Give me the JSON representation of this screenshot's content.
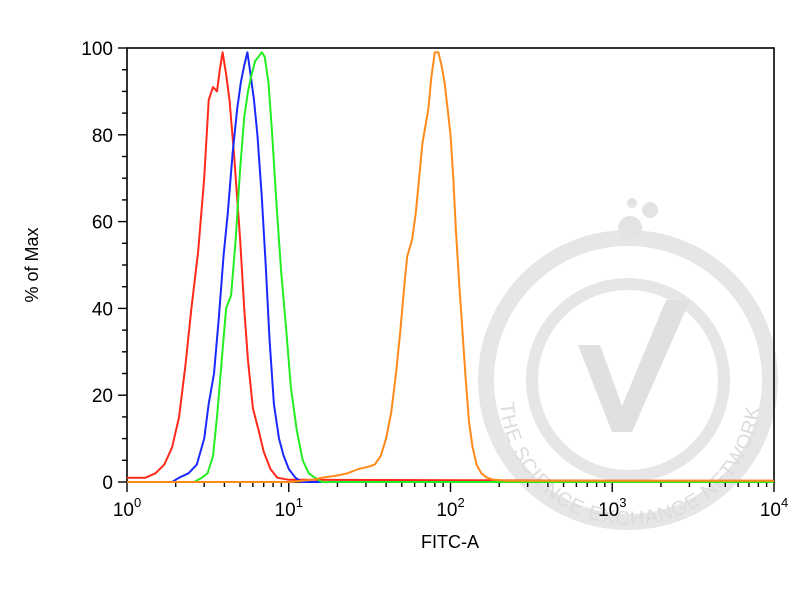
{
  "chart_data": {
    "type": "line",
    "xlabel": "FITC-A",
    "ylabel": "% of Max",
    "x_scale": "log",
    "xlim": [
      1,
      10000
    ],
    "ylim": [
      0,
      100
    ],
    "x_ticks": [
      {
        "base": "10",
        "exp": "0"
      },
      {
        "base": "10",
        "exp": "1"
      },
      {
        "base": "10",
        "exp": "2"
      },
      {
        "base": "10",
        "exp": "3"
      },
      {
        "base": "10",
        "exp": "4"
      }
    ],
    "y_ticks": [
      "0",
      "20",
      "40",
      "60",
      "80",
      "100"
    ],
    "y_tick_values": [
      0,
      20,
      40,
      60,
      80,
      100
    ],
    "grid": false,
    "legend": "none",
    "series": [
      {
        "color": "#ff2a1a",
        "points": [
          [
            1.0,
            1
          ],
          [
            1.3,
            1
          ],
          [
            1.5,
            2
          ],
          [
            1.7,
            4
          ],
          [
            1.9,
            8
          ],
          [
            2.1,
            15
          ],
          [
            2.3,
            27
          ],
          [
            2.5,
            40
          ],
          [
            2.75,
            53
          ],
          [
            3.0,
            70
          ],
          [
            3.2,
            88
          ],
          [
            3.4,
            91
          ],
          [
            3.6,
            90
          ],
          [
            3.75,
            95
          ],
          [
            3.9,
            99
          ],
          [
            4.1,
            94
          ],
          [
            4.3,
            88
          ],
          [
            4.6,
            75
          ],
          [
            5.0,
            56
          ],
          [
            5.3,
            40
          ],
          [
            5.6,
            28
          ],
          [
            6.0,
            17
          ],
          [
            6.5,
            12
          ],
          [
            7.0,
            7
          ],
          [
            7.7,
            3
          ],
          [
            8.5,
            1
          ],
          [
            10,
            0.5
          ],
          [
            1000,
            0.3
          ],
          [
            10000,
            0.3
          ]
        ]
      },
      {
        "color": "#1a2aff",
        "points": [
          [
            1.0,
            0
          ],
          [
            1.9,
            0
          ],
          [
            2.1,
            1
          ],
          [
            2.4,
            2
          ],
          [
            2.7,
            4
          ],
          [
            3.0,
            10
          ],
          [
            3.2,
            18
          ],
          [
            3.45,
            25
          ],
          [
            3.7,
            38
          ],
          [
            3.95,
            52
          ],
          [
            4.2,
            62
          ],
          [
            4.5,
            76
          ],
          [
            4.8,
            86
          ],
          [
            5.05,
            92
          ],
          [
            5.3,
            96
          ],
          [
            5.55,
            99
          ],
          [
            5.8,
            94
          ],
          [
            6.1,
            88
          ],
          [
            6.4,
            80
          ],
          [
            6.8,
            66
          ],
          [
            7.2,
            50
          ],
          [
            7.6,
            33
          ],
          [
            8.1,
            18
          ],
          [
            8.7,
            10
          ],
          [
            9.3,
            6
          ],
          [
            10,
            3
          ],
          [
            11,
            1
          ],
          [
            12,
            0
          ],
          [
            10000,
            0
          ]
        ]
      },
      {
        "color": "#22ee22",
        "points": [
          [
            1.0,
            0
          ],
          [
            2.6,
            0
          ],
          [
            2.9,
            1
          ],
          [
            3.15,
            2
          ],
          [
            3.4,
            6
          ],
          [
            3.6,
            15
          ],
          [
            3.85,
            28
          ],
          [
            4.1,
            40
          ],
          [
            4.4,
            43
          ],
          [
            4.7,
            56
          ],
          [
            5.0,
            72
          ],
          [
            5.3,
            84
          ],
          [
            5.6,
            90
          ],
          [
            5.9,
            94
          ],
          [
            6.2,
            97
          ],
          [
            6.5,
            98
          ],
          [
            6.8,
            99
          ],
          [
            7.1,
            98
          ],
          [
            7.5,
            92
          ],
          [
            7.9,
            80
          ],
          [
            8.4,
            64
          ],
          [
            9.0,
            48
          ],
          [
            9.6,
            36
          ],
          [
            10.3,
            22
          ],
          [
            11.2,
            12
          ],
          [
            12.2,
            5
          ],
          [
            13.3,
            2
          ],
          [
            14.5,
            1
          ],
          [
            16,
            0
          ],
          [
            10000,
            0
          ]
        ]
      },
      {
        "color": "#ff8a1a",
        "points": [
          [
            1.0,
            0
          ],
          [
            10,
            0
          ],
          [
            14,
            0.5
          ],
          [
            16,
            1
          ],
          [
            20,
            1.5
          ],
          [
            23,
            2
          ],
          [
            27,
            3
          ],
          [
            31,
            3.5
          ],
          [
            34,
            4
          ],
          [
            37,
            6
          ],
          [
            40,
            10
          ],
          [
            43,
            16
          ],
          [
            46,
            25
          ],
          [
            49,
            35
          ],
          [
            52,
            46
          ],
          [
            54,
            52
          ],
          [
            56,
            54
          ],
          [
            58,
            56
          ],
          [
            61,
            62
          ],
          [
            64,
            70
          ],
          [
            67,
            78
          ],
          [
            70,
            82
          ],
          [
            73,
            86
          ],
          [
            76,
            93
          ],
          [
            80,
            99
          ],
          [
            84,
            99
          ],
          [
            88,
            96
          ],
          [
            92,
            92
          ],
          [
            96,
            86
          ],
          [
            100,
            80
          ],
          [
            104,
            70
          ],
          [
            108,
            58
          ],
          [
            113,
            46
          ],
          [
            118,
            36
          ],
          [
            124,
            24
          ],
          [
            130,
            14
          ],
          [
            137,
            8
          ],
          [
            145,
            4
          ],
          [
            155,
            2
          ],
          [
            168,
            1
          ],
          [
            185,
            0.5
          ],
          [
            220,
            0.3
          ],
          [
            500,
            0.3
          ],
          [
            10000,
            0.3
          ]
        ]
      }
    ]
  }
}
